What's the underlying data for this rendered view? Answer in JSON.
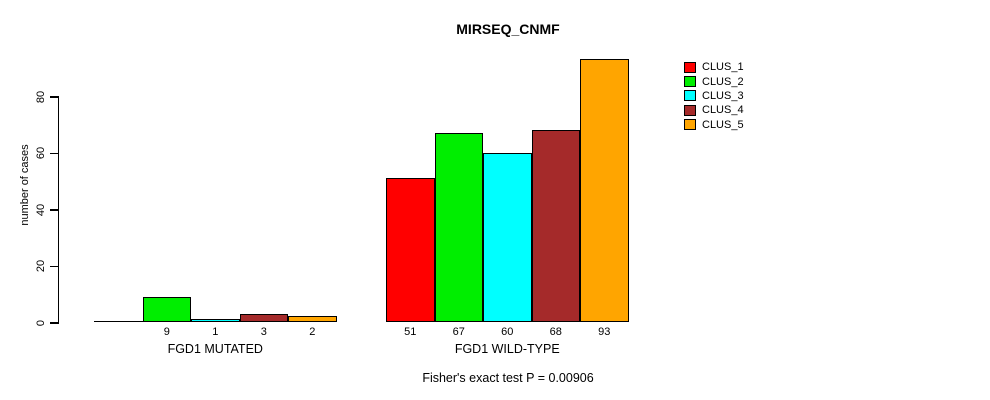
{
  "title": "MIRSEQ_CNMF",
  "chart_data": {
    "type": "bar",
    "title": "MIRSEQ_CNMF",
    "xlabel": "",
    "ylabel": "number of cases",
    "ylim": [
      0,
      93
    ],
    "y_ticks": [
      0,
      20,
      40,
      60,
      80
    ],
    "grid": false,
    "legend_position": "right",
    "background_color": "#FFFFFF",
    "bar_border_color": "#000000",
    "categories": [
      "FGD1 MUTATED",
      "FGD1 WILD-TYPE"
    ],
    "series": [
      {
        "name": "CLUS_1",
        "color": "#FF0000",
        "values": [
          0,
          51
        ]
      },
      {
        "name": "CLUS_2",
        "color": "#00EE00",
        "values": [
          9,
          67
        ]
      },
      {
        "name": "CLUS_3",
        "color": "#00FFFF",
        "values": [
          1,
          60
        ]
      },
      {
        "name": "CLUS_4",
        "color": "#A52A2A",
        "values": [
          3,
          68
        ]
      },
      {
        "name": "CLUS_5",
        "color": "#FFA500",
        "values": [
          2,
          93
        ]
      }
    ],
    "bar_value_labels": [
      [
        "",
        "9",
        "1",
        "3",
        "2"
      ],
      [
        "51",
        "67",
        "60",
        "68",
        "93"
      ]
    ],
    "annotation": "Fisher's exact test P = 0.00906"
  }
}
